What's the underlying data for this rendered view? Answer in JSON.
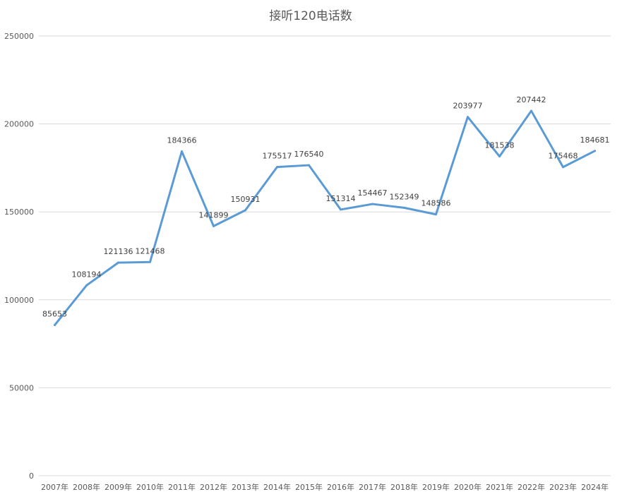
{
  "chart_data": {
    "type": "line",
    "title": "接听120电话数",
    "categories": [
      "2007年",
      "2008年",
      "2009年",
      "2010年",
      "2011年",
      "2012年",
      "2013年",
      "2014年",
      "2015年",
      "2016年",
      "2017年",
      "2018年",
      "2019年",
      "2020年",
      "2021年",
      "2022年",
      "2023年",
      "2024年"
    ],
    "series": [
      {
        "values": [
          85653,
          108194,
          121136,
          121468,
          184366,
          141899,
          150931,
          175517,
          176540,
          151314,
          154467,
          152349,
          148586,
          203977,
          181538,
          207442,
          175468,
          184681
        ],
        "data_labels": [
          "85653",
          "108194",
          "121136",
          "121468",
          "184366",
          "141899",
          "150931",
          "175517",
          "176540",
          "151314",
          "154467",
          "152349",
          "148586",
          "203977",
          "181538",
          "207442",
          "175468",
          "184681"
        ],
        "color": "#5B9BD5"
      }
    ],
    "yticks": [
      "0",
      "50000",
      "100000",
      "150000",
      "200000",
      "250000"
    ],
    "ylim": [
      0,
      250000
    ],
    "grid": true,
    "legend": "none",
    "xlabel": "",
    "ylabel": ""
  }
}
